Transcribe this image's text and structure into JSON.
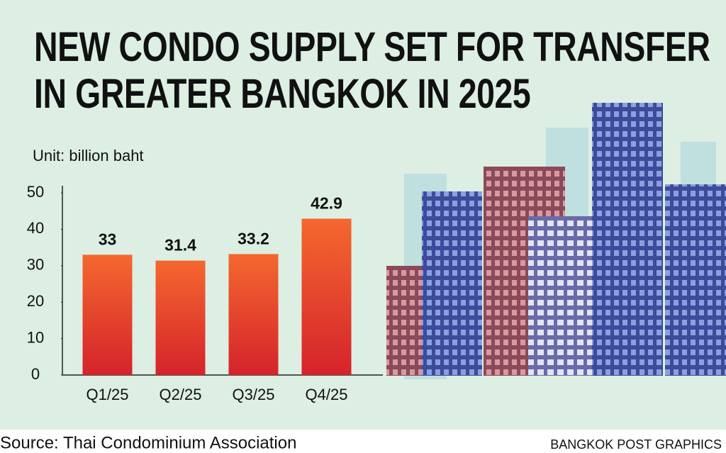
{
  "chart_data": {
    "type": "bar",
    "title": "NEW CONDO SUPPLY SET FOR TRANSFER\nIN GREATER BANGKOK IN 2025",
    "unit_label": "Unit: billion baht",
    "categories": [
      "Q1/25",
      "Q2/25",
      "Q3/25",
      "Q4/25"
    ],
    "values": [
      33,
      31.4,
      33.2,
      42.9
    ],
    "color": "#e23a2a",
    "ylim": [
      0,
      50
    ],
    "yticks": [
      0,
      10,
      20,
      30,
      40,
      50
    ],
    "source": "Source: Thai Condominium Association",
    "credit": "BANGKOK POST GRAPHICS"
  }
}
